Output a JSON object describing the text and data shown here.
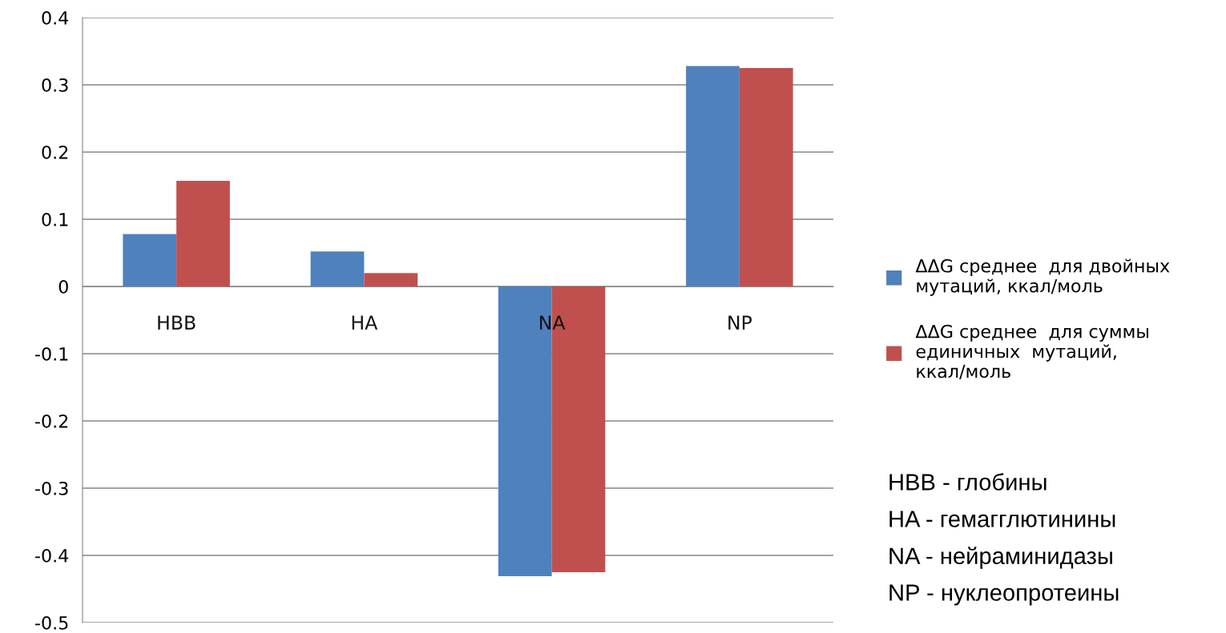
{
  "chart_data": {
    "type": "bar",
    "categories": [
      "HBB",
      "HA",
      "NA",
      "NP"
    ],
    "series": [
      {
        "name": "ΔΔG среднее  для двойных\nмутаций, ккал/моль",
        "color": "#4f81bd",
        "values": [
          0.078,
          0.052,
          -0.431,
          0.328
        ]
      },
      {
        "name": "ΔΔG среднее  для суммы\nединичных  мутаций,\nккал/моль",
        "color": "#c0504d",
        "values": [
          0.157,
          0.02,
          -0.425,
          0.325
        ]
      }
    ],
    "ylim": [
      -0.5,
      0.4
    ],
    "yticks": [
      -0.5,
      -0.4,
      -0.3,
      -0.2,
      -0.1,
      0,
      0.1,
      0.2,
      0.3,
      0.4
    ],
    "grid": "y",
    "legend": "right",
    "annotations": [
      "HBB - глобины",
      "HA - гемагглютинины",
      "NA - нейраминидазы",
      "NP - нуклеопротеины"
    ]
  }
}
